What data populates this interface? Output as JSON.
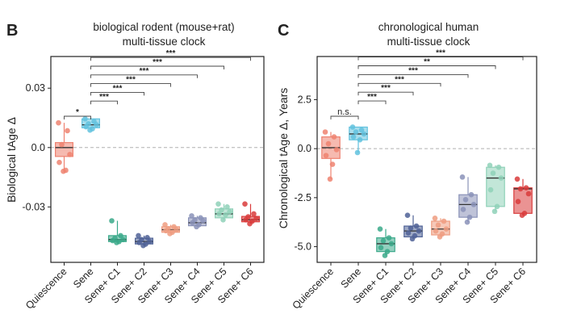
{
  "panels": [
    {
      "letter": "B",
      "title_lines": [
        "biological rodent (mouse+rat)",
        "multi-tissue clock"
      ],
      "chart_data": {
        "type": "box",
        "title": "biological rodent (mouse+rat) multi-tissue clock",
        "ylabel": "Biological tAge Δ",
        "xlabel": "",
        "ylim": [
          -0.058,
          0.046
        ],
        "yticks": [
          0.03,
          0.0,
          -0.03
        ],
        "ytick_labels": [
          "0.03",
          "0.0",
          "-0.03"
        ],
        "reference_line": 0,
        "categories": [
          "Quiescence",
          "Sene",
          "Sene+ C1",
          "Sene+ C2",
          "Sene+ C3",
          "Sene+ C4",
          "Sene+ C5",
          "Sene+ C6"
        ],
        "colors": [
          "#ee8270",
          "#62c2de",
          "#3aa98a",
          "#4f6296",
          "#ee9c80",
          "#8a92b8",
          "#8fd1b8",
          "#d93b3b"
        ],
        "boxes": [
          {
            "q1": -0.0045,
            "median": 0.0,
            "q3": 0.0025,
            "whisker_low": -0.012,
            "whisker_high": 0.0125
          },
          {
            "q1": 0.01,
            "median": 0.0115,
            "q3": 0.0145,
            "whisker_low": 0.0085,
            "whisker_high": 0.015
          },
          {
            "q1": -0.0475,
            "median": -0.0465,
            "q3": -0.0445,
            "whisker_low": -0.048,
            "whisker_high": -0.037
          },
          {
            "q1": -0.0487,
            "median": -0.0475,
            "q3": -0.0458,
            "whisker_low": -0.0495,
            "whisker_high": -0.0445
          },
          {
            "q1": -0.0428,
            "median": -0.0415,
            "q3": -0.04,
            "whisker_low": -0.0435,
            "whisker_high": -0.039
          },
          {
            "q1": -0.0395,
            "median": -0.038,
            "q3": -0.0355,
            "whisker_low": -0.04,
            "whisker_high": -0.0345
          },
          {
            "q1": -0.0355,
            "median": -0.0335,
            "q3": -0.031,
            "whisker_low": -0.0365,
            "whisker_high": -0.0285
          },
          {
            "q1": -0.0375,
            "median": -0.0365,
            "q3": -0.0348,
            "whisker_low": -0.0385,
            "whisker_high": -0.0285
          }
        ],
        "points": [
          [
            0.0125,
            0.0085,
            0.0015,
            -0.0035,
            -0.0075,
            -0.0115,
            -0.012
          ],
          [
            0.0145,
            0.0132,
            0.012,
            0.0115,
            0.0105,
            0.0095,
            0.0088
          ],
          [
            -0.037,
            -0.0445,
            -0.0458,
            -0.0465,
            -0.047,
            -0.0475,
            -0.048
          ],
          [
            -0.0445,
            -0.0455,
            -0.0465,
            -0.0475,
            -0.048,
            -0.0488,
            -0.0495
          ],
          [
            -0.039,
            -0.04,
            -0.041,
            -0.0415,
            -0.042,
            -0.0428,
            -0.0435
          ],
          [
            -0.0345,
            -0.0355,
            -0.0365,
            -0.037,
            -0.038,
            -0.039,
            -0.04
          ],
          [
            -0.0285,
            -0.03,
            -0.0315,
            -0.0325,
            -0.0335,
            -0.034,
            -0.0365
          ],
          [
            -0.0285,
            -0.0335,
            -0.035,
            -0.0358,
            -0.0365,
            -0.0372,
            -0.0385
          ]
        ],
        "comparisons": [
          {
            "from": "Quiescence",
            "to": "Sene",
            "label": "*"
          },
          {
            "from": "Sene",
            "to": "Sene+ C1",
            "label": "***"
          },
          {
            "from": "Sene",
            "to": "Sene+ C2",
            "label": "***"
          },
          {
            "from": "Sene",
            "to": "Sene+ C3",
            "label": "***"
          },
          {
            "from": "Sene",
            "to": "Sene+ C4",
            "label": "***"
          },
          {
            "from": "Sene",
            "to": "Sene+ C5",
            "label": "***"
          },
          {
            "from": "Sene",
            "to": "Sene+ C6",
            "label": "***"
          }
        ]
      }
    },
    {
      "letter": "C",
      "title_lines": [
        "chronological human",
        "multi-tissue clock"
      ],
      "chart_data": {
        "type": "box",
        "title": "chronological human multi-tissue clock",
        "ylabel": "Chronological tAge Δ, Years",
        "xlabel": "",
        "ylim": [
          -5.8,
          4.7
        ],
        "yticks": [
          2.5,
          0.0,
          -2.5,
          -5.0
        ],
        "ytick_labels": [
          "2.5",
          "0.0",
          "-2.5",
          "-5.0"
        ],
        "reference_line": 0,
        "categories": [
          "Quiescence",
          "Sene",
          "Sene+ C1",
          "Sene+ C2",
          "Sene+ C3",
          "Sene+ C4",
          "Sene+ C5",
          "Sene+ C6"
        ],
        "colors": [
          "#ee8270",
          "#62c2de",
          "#3aa98a",
          "#4f6296",
          "#ee9c80",
          "#8a92b8",
          "#8fd1b8",
          "#d93b3b"
        ],
        "boxes": [
          {
            "q1": -0.5,
            "median": 0.05,
            "q3": 0.6,
            "whisker_low": -1.55,
            "whisker_high": 0.85
          },
          {
            "q1": 0.45,
            "median": 0.75,
            "q3": 1.1,
            "whisker_low": -0.2,
            "whisker_high": 1.1
          },
          {
            "q1": -5.25,
            "median": -4.85,
            "q3": -4.55,
            "whisker_low": -5.45,
            "whisker_high": -4.1
          },
          {
            "q1": -4.5,
            "median": -4.2,
            "q3": -3.95,
            "whisker_low": -4.6,
            "whisker_high": -3.4
          },
          {
            "q1": -4.4,
            "median": -4.1,
            "q3": -3.7,
            "whisker_low": -4.5,
            "whisker_high": -3.55
          },
          {
            "q1": -3.5,
            "median": -2.85,
            "q3": -2.35,
            "whisker_low": -3.75,
            "whisker_high": -1.45
          },
          {
            "q1": -2.95,
            "median": -1.5,
            "q3": -0.95,
            "whisker_low": -3.2,
            "whisker_high": -0.85
          },
          {
            "q1": -3.3,
            "median": -2.05,
            "q3": -2.0,
            "whisker_low": -3.4,
            "whisker_high": -1.55
          }
        ],
        "points": [
          [
            0.85,
            0.6,
            0.25,
            -0.05,
            -0.35,
            -0.8,
            -1.55
          ],
          [
            1.1,
            0.95,
            0.85,
            0.75,
            0.6,
            0.45,
            -0.2
          ],
          [
            -4.1,
            -4.55,
            -4.7,
            -4.85,
            -5.05,
            -5.25,
            -5.45
          ],
          [
            -3.4,
            -3.95,
            -4.05,
            -4.2,
            -4.3,
            -4.45,
            -4.6
          ],
          [
            -3.55,
            -3.7,
            -3.9,
            -4.1,
            -4.2,
            -4.35,
            -4.5
          ],
          [
            -1.45,
            -2.35,
            -2.6,
            -2.85,
            -3.1,
            -3.5,
            -3.75
          ],
          [
            -0.85,
            -0.95,
            -1.25,
            -1.5,
            -2.1,
            -2.95,
            -3.2
          ],
          [
            -1.55,
            -2.0,
            -2.05,
            -2.3,
            -2.7,
            -3.3,
            -3.4
          ]
        ],
        "comparisons": [
          {
            "from": "Quiescence",
            "to": "Sene",
            "label": "n.s."
          },
          {
            "from": "Sene",
            "to": "Sene+ C1",
            "label": "***"
          },
          {
            "from": "Sene",
            "to": "Sene+ C2",
            "label": "***"
          },
          {
            "from": "Sene",
            "to": "Sene+ C3",
            "label": "***"
          },
          {
            "from": "Sene",
            "to": "Sene+ C4",
            "label": "***"
          },
          {
            "from": "Sene",
            "to": "Sene+ C5",
            "label": "**"
          },
          {
            "from": "Sene",
            "to": "Sene+ C6",
            "label": "***"
          }
        ]
      }
    }
  ]
}
